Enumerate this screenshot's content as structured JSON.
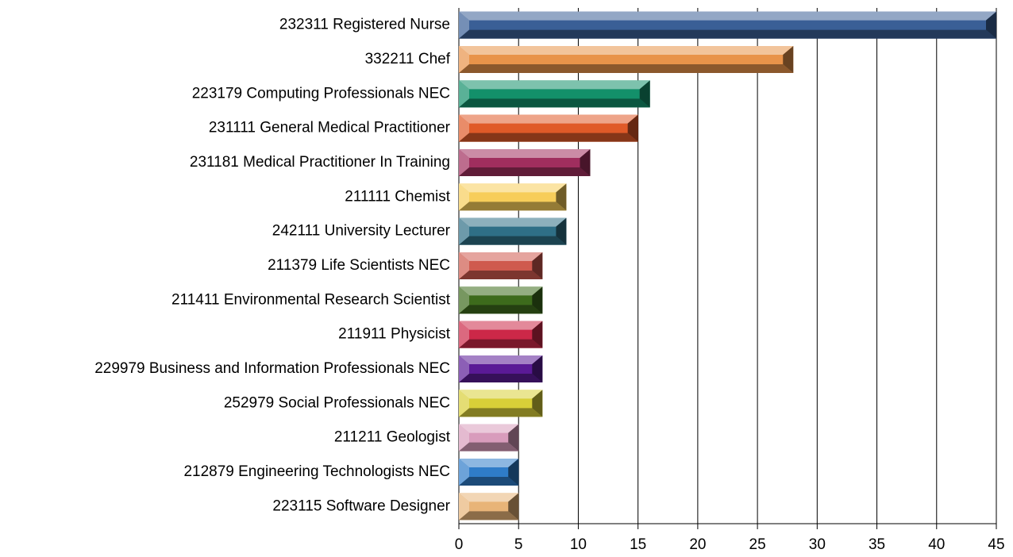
{
  "chart_data": {
    "type": "bar",
    "orientation": "horizontal",
    "categories": [
      "232311 Registered Nurse",
      "332211 Chef",
      "223179 Computing Professionals NEC",
      "231111 General Medical Practitioner",
      "231181 Medical Practitioner In Training",
      "211111 Chemist",
      "242111 University Lecturer",
      "211379 Life Scientists NEC",
      "211411 Environmental Research Scientist",
      "211911 Physicist",
      "229979 Business and Information Professionals NEC",
      "252979 Social Professionals NEC",
      "211211 Geologist",
      "212879 Engineering Technologists NEC",
      "223115 Software Designer"
    ],
    "values": [
      45,
      28,
      16,
      15,
      11,
      9,
      9,
      7,
      7,
      7,
      7,
      7,
      5,
      5,
      5
    ],
    "colors": [
      "#3a5f96",
      "#e8934a",
      "#13906a",
      "#e05a28",
      "#a02e5e",
      "#f7cd5a",
      "#2f6f86",
      "#cf5a4e",
      "#3d6b1c",
      "#cc2848",
      "#5a1a96",
      "#d8cf38",
      "#d89cbc",
      "#2f7cc8",
      "#e8b478"
    ],
    "xlim": [
      0,
      45
    ],
    "xticks": [
      0,
      5,
      10,
      15,
      20,
      25,
      30,
      35,
      40,
      45
    ],
    "grid": true
  }
}
